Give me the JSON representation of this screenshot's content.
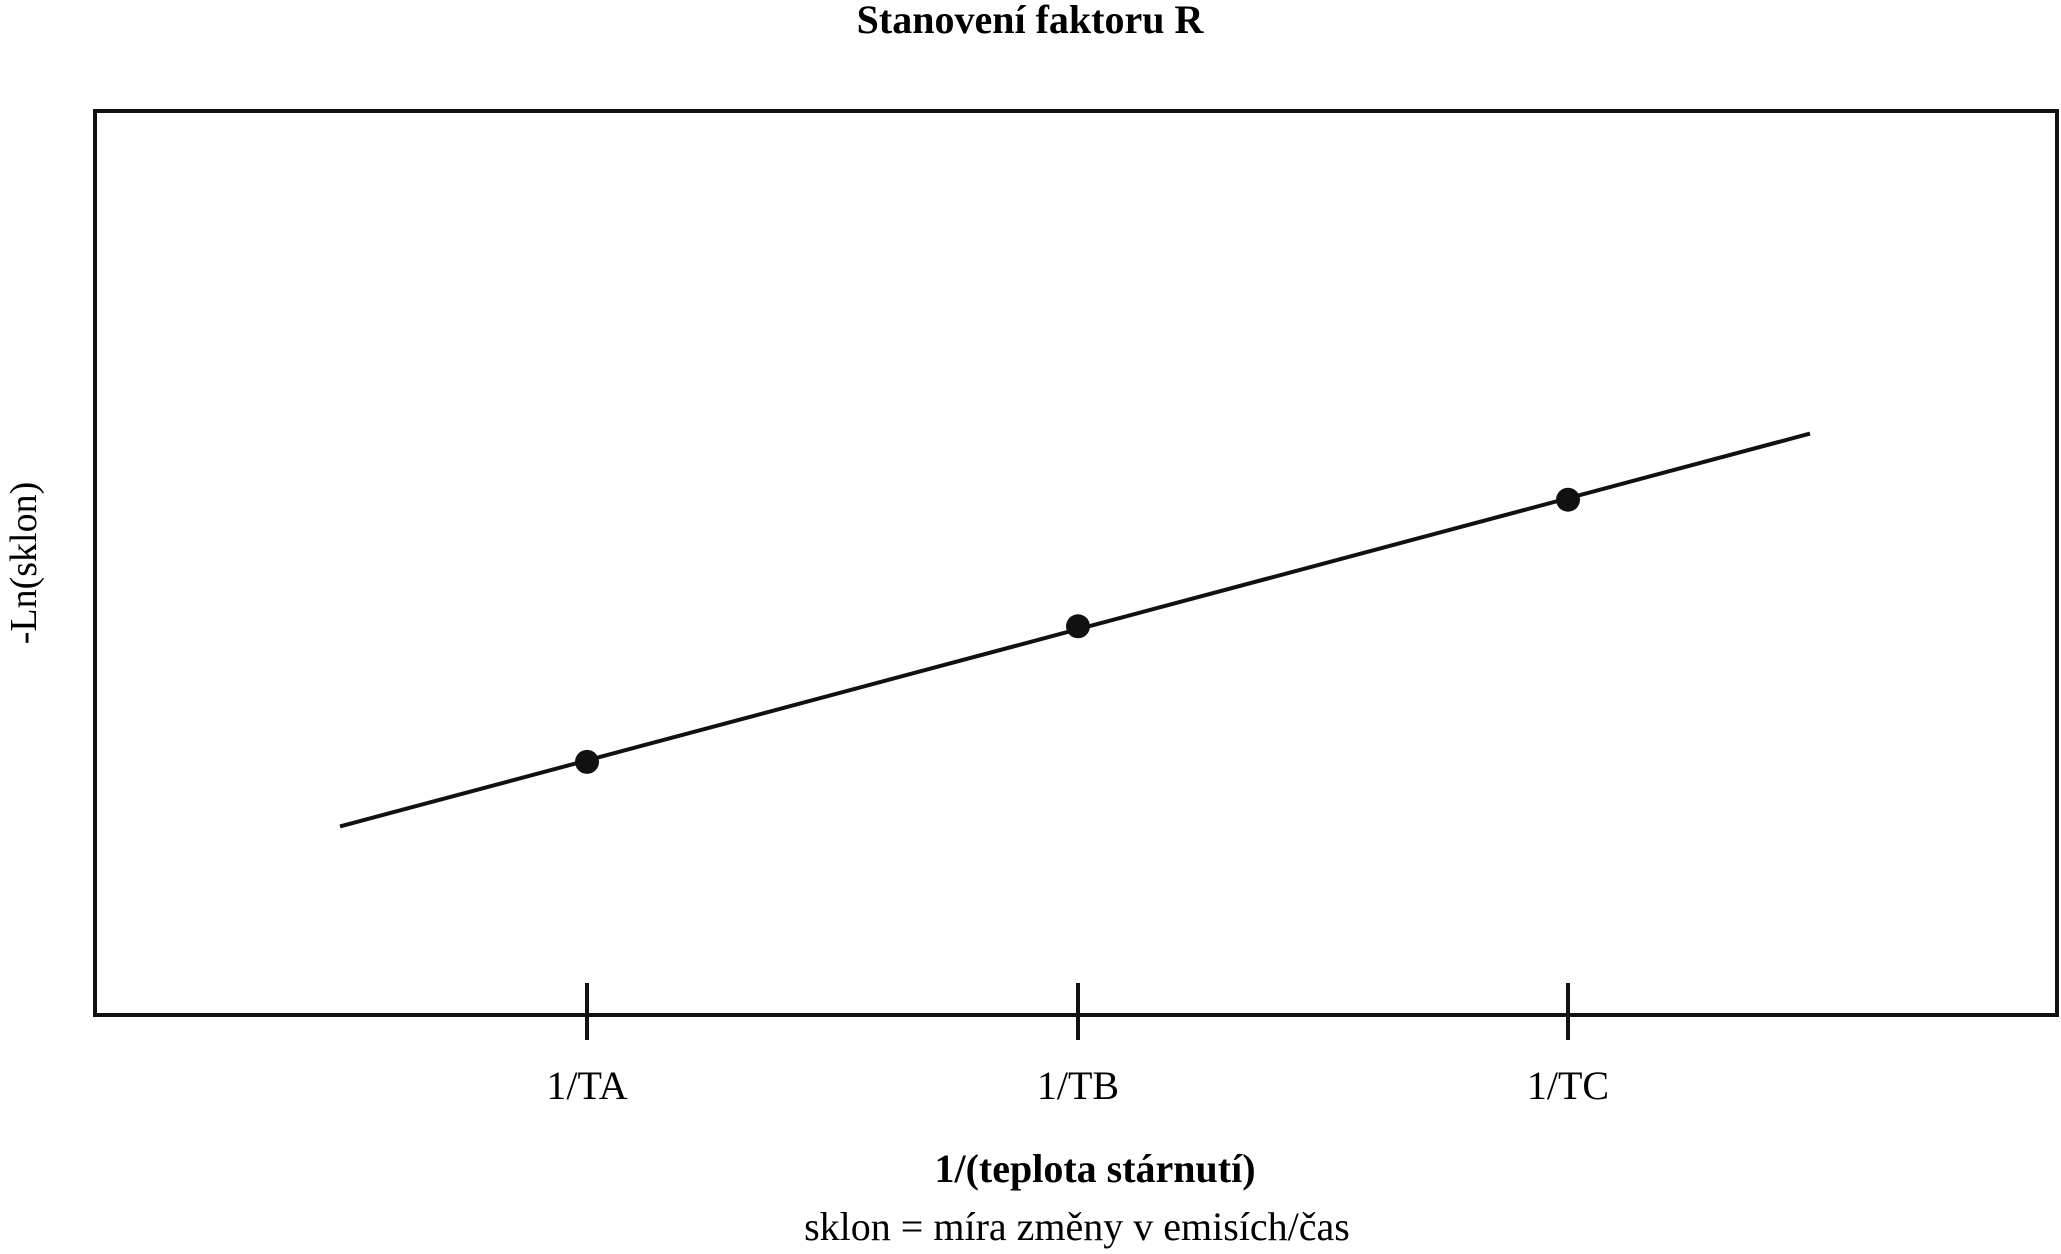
{
  "chart_data": {
    "type": "line",
    "title": "Stanovení faktoru R",
    "xlabel": "1/(teplota stárnutí)",
    "ylabel": "-Ln(sklon)",
    "footnote": "sklon = míra změny v emisích/čas",
    "categories": [
      "1/TA",
      "1/TB",
      "1/TC"
    ],
    "series": [
      {
        "points": [
          {
            "x": "1/TA",
            "y": 0.28
          },
          {
            "x": "1/TB",
            "y": 0.43
          },
          {
            "x": "1/TC",
            "y": 0.57
          }
        ]
      }
    ],
    "fit_line": {
      "extends_beyond_points": true
    },
    "ylim": [
      0,
      1
    ],
    "y_ticks": false,
    "grid": false,
    "legend": "none",
    "colors": {
      "line": "#111111",
      "marker": "#111111",
      "frame": "#111111"
    }
  }
}
